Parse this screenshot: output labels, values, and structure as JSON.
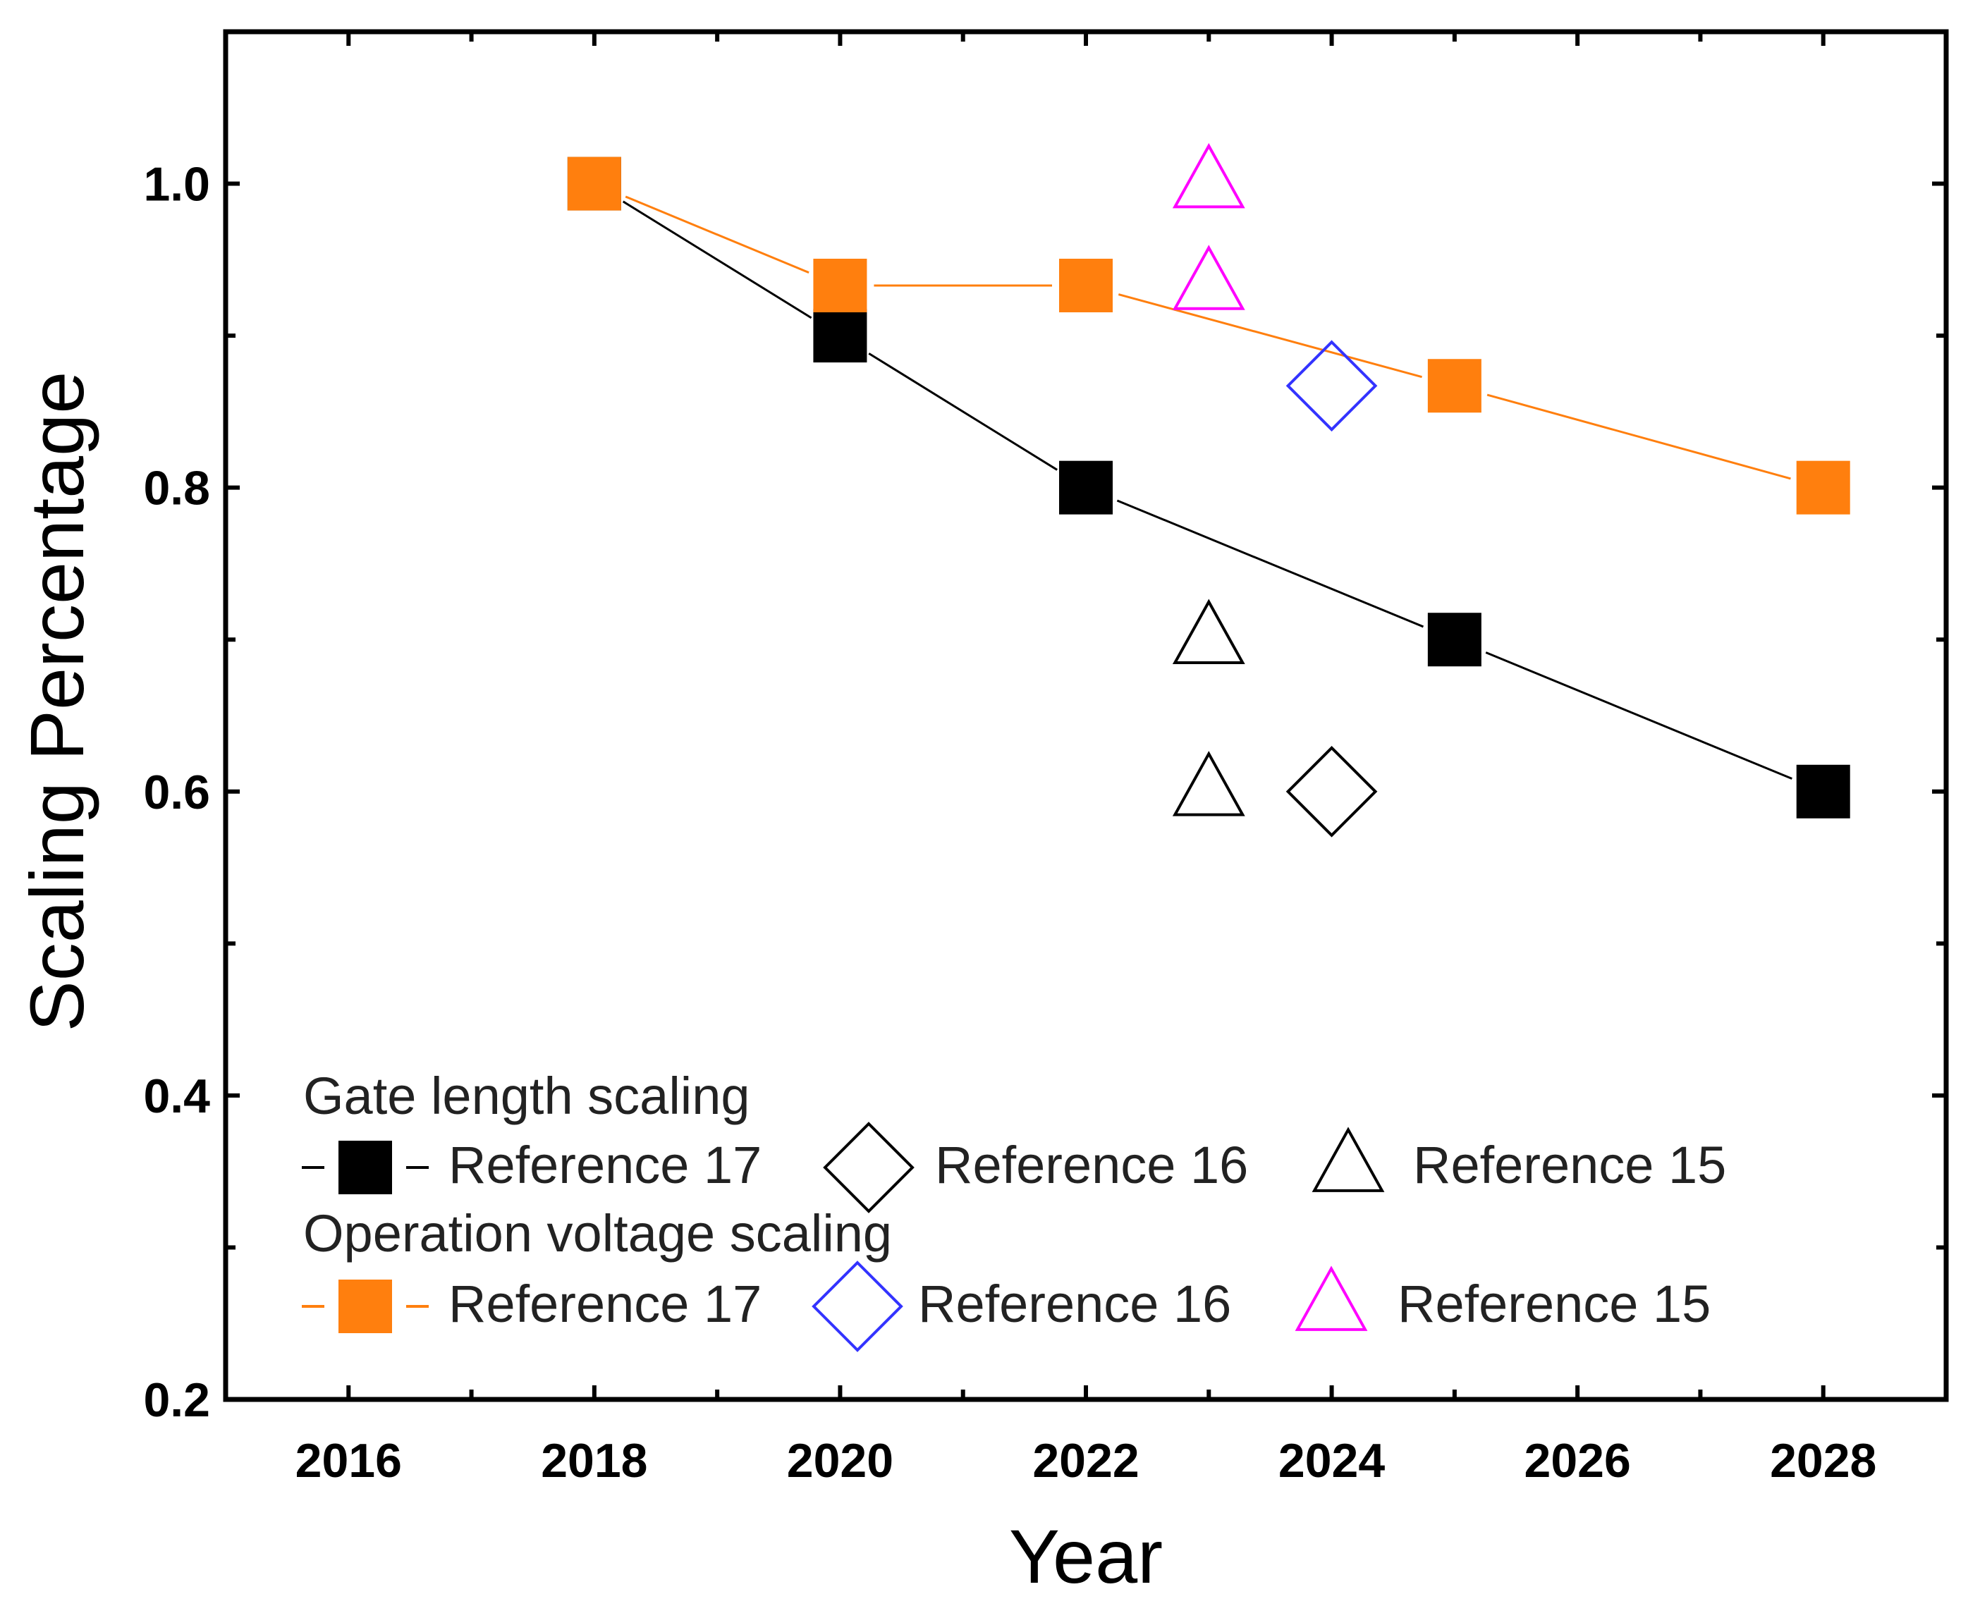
{
  "chart_data": {
    "type": "scatter",
    "title": "",
    "xlabel": "Year",
    "ylabel": "Scaling Percentage",
    "xlim": [
      2015,
      2029
    ],
    "ylim": [
      0.2,
      1.1
    ],
    "x_ticks": [
      2016,
      2018,
      2020,
      2022,
      2024,
      2026,
      2028
    ],
    "y_ticks": [
      0.2,
      0.4,
      0.6,
      0.8,
      1.0
    ],
    "y_tick_labels": [
      "0.2",
      "0.4",
      "0.6",
      "0.8",
      "1.0"
    ],
    "grid": false,
    "legend_position": "bottom-left",
    "series": [
      {
        "name": "Reference 17",
        "group": "Gate length scaling",
        "marker": "square-filled",
        "color": "#000000",
        "line": true,
        "x": [
          2018,
          2020,
          2022,
          2025,
          2028
        ],
        "y": [
          1.0,
          0.9,
          0.8,
          0.7,
          0.6
        ]
      },
      {
        "name": "Reference 16",
        "group": "Gate length scaling",
        "marker": "diamond-open",
        "color": "#000000",
        "line": false,
        "x": [
          2024
        ],
        "y": [
          0.6
        ]
      },
      {
        "name": "Reference 15",
        "group": "Gate length scaling",
        "marker": "triangle-open",
        "color": "#000000",
        "line": false,
        "x": [
          2023,
          2023
        ],
        "y": [
          0.7,
          0.6
        ]
      },
      {
        "name": "Reference 17",
        "group": "Operation voltage scaling",
        "marker": "square-filled",
        "color": "#FF7F0E",
        "line": true,
        "x": [
          2018,
          2020,
          2022,
          2025,
          2028
        ],
        "y": [
          1.0,
          0.933,
          0.933,
          0.867,
          0.8
        ]
      },
      {
        "name": "Reference 16",
        "group": "Operation voltage scaling",
        "marker": "diamond-open",
        "color": "#3333FF",
        "line": false,
        "x": [
          2024
        ],
        "y": [
          0.867
        ]
      },
      {
        "name": "Reference 15",
        "group": "Operation voltage scaling",
        "marker": "triangle-open",
        "color": "#FF00FF",
        "line": false,
        "x": [
          2023,
          2023
        ],
        "y": [
          1.0,
          0.933
        ]
      }
    ],
    "legend": {
      "groups": [
        {
          "title": "Gate length scaling",
          "entries": [
            {
              "label": "Reference 17",
              "series_index": 0
            },
            {
              "label": "Reference 16",
              "series_index": 1
            },
            {
              "label": "Reference 15",
              "series_index": 2
            }
          ]
        },
        {
          "title": "Operation voltage scaling",
          "entries": [
            {
              "label": "Reference 17",
              "series_index": 3
            },
            {
              "label": "Reference 16",
              "series_index": 4
            },
            {
              "label": "Reference 15",
              "series_index": 5
            }
          ]
        }
      ]
    }
  }
}
